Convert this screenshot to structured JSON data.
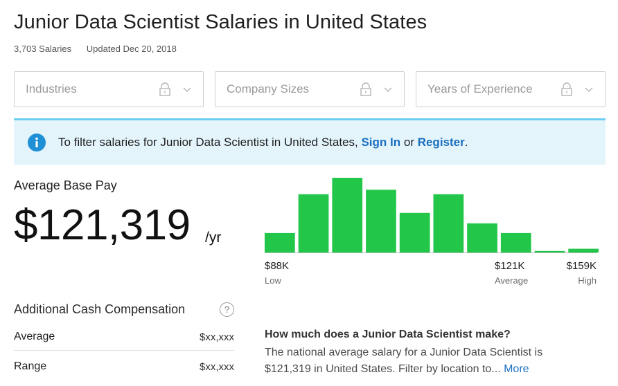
{
  "header": {
    "title": "Junior Data Scientist Salaries in United States",
    "salary_count": "3,703 Salaries",
    "updated": "Updated Dec 20, 2018"
  },
  "filters": [
    {
      "label": "Industries",
      "icon": "lock-icon"
    },
    {
      "label": "Company Sizes",
      "icon": "lock-icon"
    },
    {
      "label": "Years of Experience",
      "icon": "lock-icon"
    }
  ],
  "banner": {
    "text_before": "To filter salaries for Junior Data Scientist in United States, ",
    "sign_in": "Sign In",
    "text_mid": " or ",
    "register": "Register",
    "text_after": ".",
    "icon": "info-icon",
    "accent": "#1f8fd6"
  },
  "average": {
    "label": "Average Base Pay",
    "value": "$121,319",
    "unit": "/yr"
  },
  "histogram": {
    "bar_color": "#22c74a",
    "relative_heights": [
      0.26,
      0.78,
      1.0,
      0.84,
      0.53,
      0.78,
      0.39,
      0.26,
      0.02,
      0.05
    ],
    "low": {
      "value": "$88K",
      "label": "Low"
    },
    "avg": {
      "value": "$121K",
      "label": "Average"
    },
    "high": {
      "value": "$159K",
      "label": "High"
    }
  },
  "additional": {
    "label": "Additional Cash Compensation",
    "help": "?",
    "rows": [
      {
        "label": "Average",
        "value": "$xx,xxx"
      },
      {
        "label": "Range",
        "value": "$xx,xxx"
      }
    ]
  },
  "question": {
    "title": "How much does a Junior Data Scientist make?",
    "line1": "The national average salary for a Junior Data Scientist is",
    "line2": "$121,319 in United States. Filter by location to... ",
    "more": "More"
  }
}
